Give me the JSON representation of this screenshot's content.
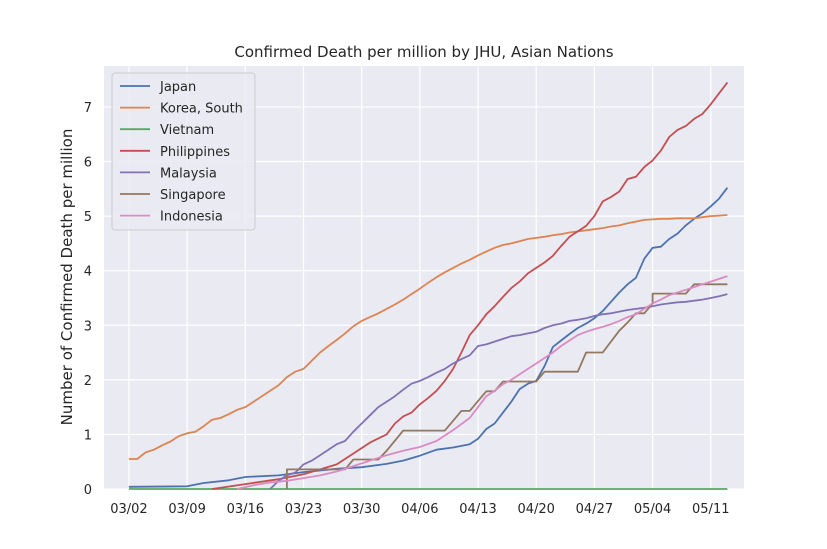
{
  "chart_data": {
    "type": "line",
    "title": "Confirmed Death per million by JHU, Asian Nations",
    "xlabel": "",
    "ylabel": "Number of Confirmed Death per million",
    "x_ticks": [
      "03/02",
      "03/09",
      "03/16",
      "03/23",
      "03/30",
      "04/06",
      "04/13",
      "04/20",
      "04/27",
      "05/04",
      "05/11"
    ],
    "x_tick_days": [
      0,
      7,
      14,
      21,
      28,
      35,
      42,
      49,
      56,
      63,
      70
    ],
    "y_ticks": [
      "0",
      "1",
      "2",
      "3",
      "4",
      "5",
      "6",
      "7"
    ],
    "xlim": [
      -3,
      74
    ],
    "ylim": [
      0,
      7.75
    ],
    "grid": true,
    "legend_position": "upper-left",
    "series": [
      {
        "name": "Japan",
        "color": "#4c72b0",
        "points": [
          [
            0,
            0.04
          ],
          [
            7,
            0.05
          ],
          [
            9,
            0.11
          ],
          [
            12,
            0.16
          ],
          [
            14,
            0.22
          ],
          [
            18,
            0.25
          ],
          [
            21,
            0.31
          ],
          [
            25,
            0.37
          ],
          [
            28,
            0.4
          ],
          [
            31,
            0.46
          ],
          [
            33,
            0.52
          ],
          [
            35,
            0.61
          ],
          [
            37,
            0.72
          ],
          [
            39,
            0.76
          ],
          [
            41,
            0.82
          ],
          [
            42,
            0.92
          ],
          [
            43,
            1.1
          ],
          [
            44,
            1.2
          ],
          [
            45,
            1.4
          ],
          [
            46,
            1.6
          ],
          [
            47,
            1.83
          ],
          [
            48,
            1.93
          ],
          [
            49,
            1.98
          ],
          [
            50,
            2.25
          ],
          [
            51,
            2.6
          ],
          [
            52,
            2.72
          ],
          [
            53,
            2.84
          ],
          [
            54,
            2.95
          ],
          [
            55,
            3.03
          ],
          [
            56,
            3.13
          ],
          [
            57,
            3.26
          ],
          [
            58,
            3.43
          ],
          [
            59,
            3.6
          ],
          [
            60,
            3.75
          ],
          [
            61,
            3.87
          ],
          [
            62,
            4.22
          ],
          [
            63,
            4.42
          ],
          [
            64,
            4.44
          ],
          [
            65,
            4.58
          ],
          [
            66,
            4.68
          ],
          [
            67,
            4.83
          ],
          [
            68,
            4.95
          ],
          [
            69,
            5.05
          ],
          [
            70,
            5.18
          ],
          [
            71,
            5.32
          ],
          [
            72,
            5.52
          ]
        ]
      },
      {
        "name": "Korea, South",
        "color": "#dd8452",
        "points": [
          [
            0,
            0.55
          ],
          [
            1,
            0.55
          ],
          [
            2,
            0.67
          ],
          [
            3,
            0.72
          ],
          [
            4,
            0.8
          ],
          [
            5,
            0.87
          ],
          [
            6,
            0.97
          ],
          [
            7,
            1.02
          ],
          [
            8,
            1.05
          ],
          [
            9,
            1.15
          ],
          [
            10,
            1.27
          ],
          [
            11,
            1.3
          ],
          [
            12,
            1.37
          ],
          [
            13,
            1.45
          ],
          [
            14,
            1.5
          ],
          [
            15,
            1.6
          ],
          [
            16,
            1.7
          ],
          [
            17,
            1.8
          ],
          [
            18,
            1.9
          ],
          [
            19,
            2.05
          ],
          [
            20,
            2.15
          ],
          [
            21,
            2.2
          ],
          [
            22,
            2.35
          ],
          [
            23,
            2.5
          ],
          [
            24,
            2.62
          ],
          [
            25,
            2.73
          ],
          [
            26,
            2.85
          ],
          [
            27,
            2.98
          ],
          [
            28,
            3.08
          ],
          [
            29,
            3.15
          ],
          [
            30,
            3.22
          ],
          [
            31,
            3.3
          ],
          [
            32,
            3.38
          ],
          [
            33,
            3.47
          ],
          [
            34,
            3.57
          ],
          [
            35,
            3.67
          ],
          [
            36,
            3.78
          ],
          [
            37,
            3.88
          ],
          [
            38,
            3.97
          ],
          [
            39,
            4.05
          ],
          [
            40,
            4.13
          ],
          [
            41,
            4.2
          ],
          [
            42,
            4.28
          ],
          [
            43,
            4.35
          ],
          [
            44,
            4.42
          ],
          [
            45,
            4.47
          ],
          [
            46,
            4.5
          ],
          [
            47,
            4.54
          ],
          [
            48,
            4.58
          ],
          [
            49,
            4.6
          ],
          [
            50,
            4.62
          ],
          [
            51,
            4.65
          ],
          [
            52,
            4.67
          ],
          [
            53,
            4.7
          ],
          [
            54,
            4.72
          ],
          [
            55,
            4.74
          ],
          [
            56,
            4.76
          ],
          [
            57,
            4.78
          ],
          [
            58,
            4.81
          ],
          [
            59,
            4.83
          ],
          [
            60,
            4.87
          ],
          [
            61,
            4.9
          ],
          [
            62,
            4.93
          ],
          [
            63,
            4.94
          ],
          [
            64,
            4.95
          ],
          [
            65,
            4.95
          ],
          [
            66,
            4.96
          ],
          [
            67,
            4.96
          ],
          [
            68,
            4.96
          ],
          [
            69,
            4.98
          ],
          [
            70,
            5.0
          ],
          [
            71,
            5.01
          ],
          [
            72,
            5.02
          ]
        ]
      },
      {
        "name": "Vietnam",
        "color": "#55a868",
        "points": [
          [
            0,
            0
          ],
          [
            72,
            0
          ]
        ]
      },
      {
        "name": "Philippines",
        "color": "#c44e52",
        "points": [
          [
            10,
            0.0
          ],
          [
            14,
            0.09
          ],
          [
            18,
            0.18
          ],
          [
            21,
            0.27
          ],
          [
            25,
            0.45
          ],
          [
            27,
            0.65
          ],
          [
            29,
            0.85
          ],
          [
            31,
            1.0
          ],
          [
            32,
            1.2
          ],
          [
            33,
            1.33
          ],
          [
            34,
            1.4
          ],
          [
            35,
            1.55
          ],
          [
            36,
            1.67
          ],
          [
            37,
            1.8
          ],
          [
            38,
            1.98
          ],
          [
            39,
            2.2
          ],
          [
            40,
            2.5
          ],
          [
            41,
            2.82
          ],
          [
            42,
            3.0
          ],
          [
            43,
            3.2
          ],
          [
            44,
            3.35
          ],
          [
            45,
            3.52
          ],
          [
            46,
            3.68
          ],
          [
            47,
            3.8
          ],
          [
            48,
            3.95
          ],
          [
            49,
            4.05
          ],
          [
            50,
            4.15
          ],
          [
            51,
            4.27
          ],
          [
            52,
            4.45
          ],
          [
            53,
            4.62
          ],
          [
            54,
            4.72
          ],
          [
            55,
            4.82
          ],
          [
            56,
            5.0
          ],
          [
            57,
            5.27
          ],
          [
            58,
            5.35
          ],
          [
            59,
            5.45
          ],
          [
            60,
            5.68
          ],
          [
            61,
            5.72
          ],
          [
            62,
            5.9
          ],
          [
            63,
            6.02
          ],
          [
            64,
            6.2
          ],
          [
            65,
            6.45
          ],
          [
            66,
            6.58
          ],
          [
            67,
            6.65
          ],
          [
            68,
            6.78
          ],
          [
            69,
            6.87
          ],
          [
            70,
            7.05
          ],
          [
            71,
            7.25
          ],
          [
            72,
            7.45
          ]
        ]
      },
      {
        "name": "Malaysia",
        "color": "#8172b3",
        "points": [
          [
            17,
            0.0
          ],
          [
            18,
            0.15
          ],
          [
            19,
            0.25
          ],
          [
            20,
            0.3
          ],
          [
            21,
            0.45
          ],
          [
            22,
            0.52
          ],
          [
            23,
            0.62
          ],
          [
            24,
            0.72
          ],
          [
            25,
            0.82
          ],
          [
            26,
            0.88
          ],
          [
            27,
            1.05
          ],
          [
            28,
            1.2
          ],
          [
            29,
            1.35
          ],
          [
            30,
            1.5
          ],
          [
            31,
            1.6
          ],
          [
            32,
            1.7
          ],
          [
            33,
            1.82
          ],
          [
            34,
            1.93
          ],
          [
            35,
            1.98
          ],
          [
            36,
            2.05
          ],
          [
            37,
            2.13
          ],
          [
            38,
            2.2
          ],
          [
            39,
            2.3
          ],
          [
            40,
            2.38
          ],
          [
            41,
            2.45
          ],
          [
            42,
            2.62
          ],
          [
            43,
            2.65
          ],
          [
            44,
            2.7
          ],
          [
            45,
            2.75
          ],
          [
            46,
            2.8
          ],
          [
            47,
            2.82
          ],
          [
            48,
            2.85
          ],
          [
            49,
            2.88
          ],
          [
            50,
            2.95
          ],
          [
            51,
            3.0
          ],
          [
            52,
            3.03
          ],
          [
            53,
            3.08
          ],
          [
            54,
            3.1
          ],
          [
            55,
            3.13
          ],
          [
            56,
            3.17
          ],
          [
            57,
            3.2
          ],
          [
            58,
            3.22
          ],
          [
            59,
            3.25
          ],
          [
            60,
            3.28
          ],
          [
            61,
            3.3
          ],
          [
            62,
            3.32
          ],
          [
            63,
            3.35
          ],
          [
            64,
            3.38
          ],
          [
            65,
            3.4
          ],
          [
            66,
            3.42
          ],
          [
            67,
            3.43
          ],
          [
            68,
            3.45
          ],
          [
            69,
            3.47
          ],
          [
            70,
            3.5
          ],
          [
            71,
            3.53
          ],
          [
            72,
            3.57
          ]
        ]
      },
      {
        "name": "Singapore",
        "color": "#937860",
        "points": [
          [
            19,
            0.0
          ],
          [
            19,
            0.36
          ],
          [
            26,
            0.36
          ],
          [
            27,
            0.54
          ],
          [
            29,
            0.54
          ],
          [
            30,
            0.54
          ],
          [
            31,
            0.7
          ],
          [
            33,
            1.07
          ],
          [
            38,
            1.07
          ],
          [
            39,
            1.25
          ],
          [
            40,
            1.43
          ],
          [
            41,
            1.43
          ],
          [
            42,
            1.61
          ],
          [
            43,
            1.79
          ],
          [
            44,
            1.79
          ],
          [
            45,
            1.97
          ],
          [
            48,
            1.97
          ],
          [
            49,
            1.97
          ],
          [
            50,
            2.15
          ],
          [
            54,
            2.15
          ],
          [
            55,
            2.5
          ],
          [
            57,
            2.5
          ],
          [
            58,
            2.7
          ],
          [
            59,
            2.9
          ],
          [
            60,
            3.05
          ],
          [
            61,
            3.22
          ],
          [
            62,
            3.22
          ],
          [
            63,
            3.4
          ],
          [
            63,
            3.58
          ],
          [
            67,
            3.58
          ],
          [
            68,
            3.75
          ],
          [
            72,
            3.75
          ]
        ]
      },
      {
        "name": "Indonesia",
        "color": "#da8bc3",
        "points": [
          [
            13,
            0.0
          ],
          [
            15,
            0.07
          ],
          [
            17,
            0.12
          ],
          [
            19,
            0.15
          ],
          [
            21,
            0.2
          ],
          [
            23,
            0.25
          ],
          [
            25,
            0.32
          ],
          [
            27,
            0.42
          ],
          [
            29,
            0.52
          ],
          [
            31,
            0.62
          ],
          [
            33,
            0.7
          ],
          [
            35,
            0.77
          ],
          [
            37,
            0.88
          ],
          [
            39,
            1.08
          ],
          [
            41,
            1.3
          ],
          [
            42,
            1.5
          ],
          [
            43,
            1.7
          ],
          [
            44,
            1.8
          ],
          [
            45,
            1.92
          ],
          [
            46,
            2.0
          ],
          [
            47,
            2.1
          ],
          [
            48,
            2.2
          ],
          [
            49,
            2.3
          ],
          [
            50,
            2.4
          ],
          [
            51,
            2.5
          ],
          [
            52,
            2.62
          ],
          [
            53,
            2.72
          ],
          [
            54,
            2.82
          ],
          [
            55,
            2.88
          ],
          [
            56,
            2.93
          ],
          [
            57,
            2.97
          ],
          [
            58,
            3.02
          ],
          [
            59,
            3.08
          ],
          [
            60,
            3.15
          ],
          [
            61,
            3.2
          ],
          [
            62,
            3.3
          ],
          [
            63,
            3.4
          ],
          [
            64,
            3.47
          ],
          [
            65,
            3.55
          ],
          [
            66,
            3.6
          ],
          [
            67,
            3.65
          ],
          [
            68,
            3.7
          ],
          [
            69,
            3.75
          ],
          [
            70,
            3.8
          ],
          [
            71,
            3.85
          ],
          [
            72,
            3.9
          ]
        ]
      }
    ]
  }
}
